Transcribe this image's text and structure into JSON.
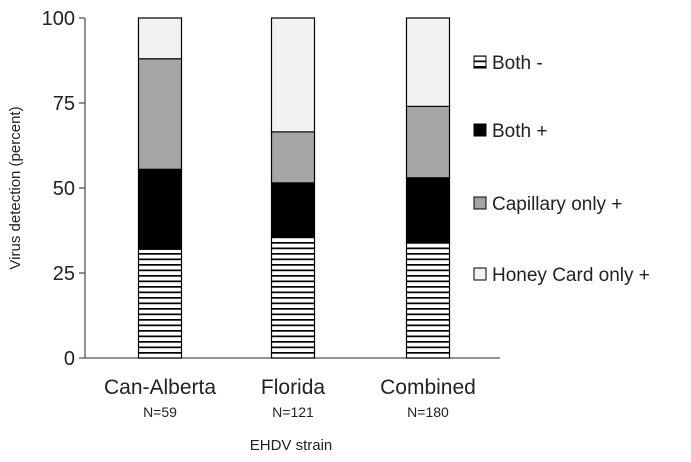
{
  "chart_data": {
    "type": "bar",
    "stacked": true,
    "title": "",
    "xlabel": "EHDV strain",
    "ylabel": "Virus detection (percent)",
    "ylim": [
      0,
      100
    ],
    "yticks": [
      0,
      25,
      50,
      75,
      100
    ],
    "ytick_labels": [
      "0",
      "25",
      "50",
      "75",
      "100"
    ],
    "categories": [
      "Can-Alberta",
      "Florida",
      "Combined"
    ],
    "category_n": [
      "N=59",
      "N=121",
      "N=180"
    ],
    "legend_position": "right",
    "grid": false,
    "series": [
      {
        "name": "Both -",
        "values": [
          32,
          35.5,
          34
        ],
        "pattern": "horizontal-stripes",
        "color": "#000000"
      },
      {
        "name": "Both +",
        "values": [
          23.5,
          16,
          19
        ],
        "pattern": "solid",
        "color": "#000000"
      },
      {
        "name": "Capillary only +",
        "values": [
          32.5,
          15,
          21
        ],
        "pattern": "solid",
        "color": "#a6a6a6"
      },
      {
        "name": "Honey Card only +",
        "values": [
          12,
          33.5,
          26
        ],
        "pattern": "solid",
        "color": "#f2f2f2"
      }
    ],
    "legend_order": [
      "Both -",
      "Both +",
      "Capillary only +",
      "Honey Card only +"
    ]
  }
}
